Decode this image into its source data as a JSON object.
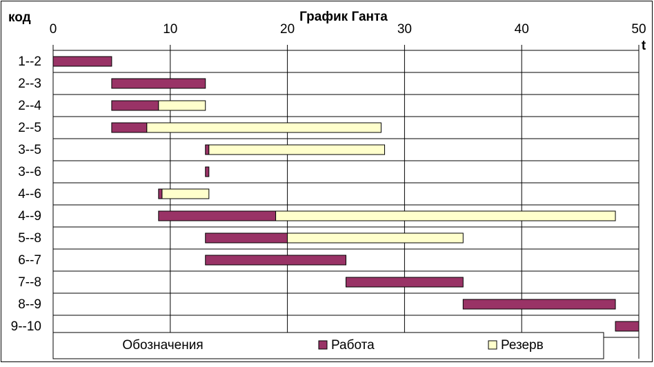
{
  "chart_data": {
    "type": "gantt",
    "title": "График Ганта",
    "y_label": "код",
    "x_label": "t",
    "categories": [
      "1--2",
      "2--3",
      "2--4",
      "2--5",
      "3--5",
      "3--6",
      "4--6",
      "4--9",
      "5--8",
      "6--7",
      "7--8",
      "8--9",
      "9--10"
    ],
    "starts": [
      0,
      5,
      5,
      5,
      13,
      13,
      9,
      9,
      13,
      13,
      25,
      35,
      48
    ],
    "series": [
      {
        "name": "Работа",
        "color": "#993366",
        "values": [
          5,
          8,
          4,
          3,
          0.3,
          0.3,
          0.3,
          10,
          7,
          12,
          10,
          13,
          2
        ]
      },
      {
        "name": "Резерв",
        "color": "#ffffcc",
        "values": [
          0,
          0,
          4,
          20,
          15,
          0,
          4,
          29,
          15,
          0,
          0,
          0,
          0
        ]
      }
    ],
    "legend_title": "Обозначения",
    "xlim": [
      0,
      50
    ],
    "xticks": [
      0,
      10,
      20,
      30,
      40,
      50
    ],
    "grid": true
  }
}
